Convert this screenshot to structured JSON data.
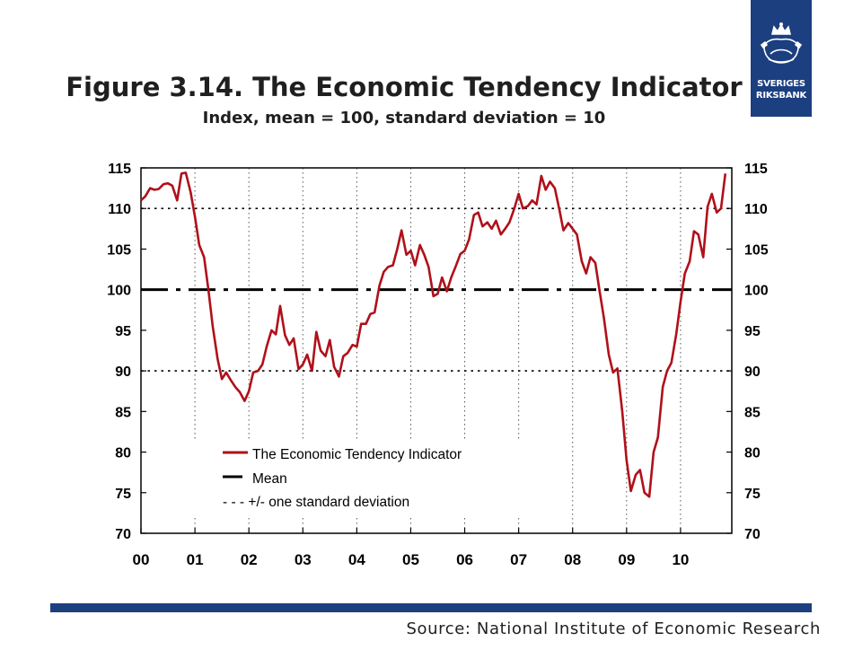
{
  "header": {
    "title": "Figure 3.14. The Economic Tendency Indicator",
    "subtitle": "Index, mean = 100, standard deviation = 10"
  },
  "logo": {
    "line1": "SVERIGES",
    "line2": "RIKSBANK"
  },
  "footer": {
    "source": "Source: National Institute of Economic Research"
  },
  "colors": {
    "series": "#b0101a",
    "brand": "#1c3f80"
  },
  "chart_data": {
    "type": "line",
    "xlabel": "",
    "ylabel": "",
    "ylim": [
      70,
      115
    ],
    "yticks": [
      70,
      75,
      80,
      85,
      90,
      95,
      100,
      105,
      110,
      115
    ],
    "xlim": [
      2000,
      2010.95
    ],
    "xticks": [
      {
        "x": 2000,
        "label": "00"
      },
      {
        "x": 2001,
        "label": "01"
      },
      {
        "x": 2002,
        "label": "02"
      },
      {
        "x": 2003,
        "label": "03"
      },
      {
        "x": 2004,
        "label": "04"
      },
      {
        "x": 2005,
        "label": "05"
      },
      {
        "x": 2006,
        "label": "06"
      },
      {
        "x": 2007,
        "label": "07"
      },
      {
        "x": 2008,
        "label": "08"
      },
      {
        "x": 2009,
        "label": "09"
      },
      {
        "x": 2010,
        "label": "10"
      }
    ],
    "legend_position": "bottom-left",
    "series": [
      {
        "name": "The Economic Tendency Indicator",
        "style": "solid",
        "points": [
          [
            2000.0,
            111.0
          ],
          [
            2000.08,
            111.5
          ],
          [
            2000.17,
            112.5
          ],
          [
            2000.25,
            112.3
          ],
          [
            2000.33,
            112.4
          ],
          [
            2000.42,
            113.0
          ],
          [
            2000.5,
            113.1
          ],
          [
            2000.58,
            112.8
          ],
          [
            2000.67,
            111.0
          ],
          [
            2000.75,
            114.3
          ],
          [
            2000.83,
            114.4
          ],
          [
            2000.92,
            112.0
          ],
          [
            2001.0,
            109.0
          ],
          [
            2001.08,
            105.5
          ],
          [
            2001.17,
            104.0
          ],
          [
            2001.25,
            100.0
          ],
          [
            2001.33,
            95.5
          ],
          [
            2001.42,
            91.5
          ],
          [
            2001.5,
            89.0
          ],
          [
            2001.58,
            89.8
          ],
          [
            2001.67,
            88.8
          ],
          [
            2001.75,
            88.0
          ],
          [
            2001.83,
            87.4
          ],
          [
            2001.92,
            86.3
          ],
          [
            2002.0,
            87.5
          ],
          [
            2002.08,
            89.8
          ],
          [
            2002.17,
            90.0
          ],
          [
            2002.25,
            90.8
          ],
          [
            2002.33,
            93.0
          ],
          [
            2002.42,
            95.0
          ],
          [
            2002.5,
            94.5
          ],
          [
            2002.58,
            98.0
          ],
          [
            2002.67,
            94.4
          ],
          [
            2002.75,
            93.2
          ],
          [
            2002.83,
            94.0
          ],
          [
            2002.92,
            90.2
          ],
          [
            2003.0,
            90.8
          ],
          [
            2003.08,
            92.0
          ],
          [
            2003.17,
            90.0
          ],
          [
            2003.25,
            94.8
          ],
          [
            2003.33,
            92.5
          ],
          [
            2003.42,
            91.8
          ],
          [
            2003.5,
            93.8
          ],
          [
            2003.58,
            90.5
          ],
          [
            2003.67,
            89.3
          ],
          [
            2003.75,
            91.8
          ],
          [
            2003.83,
            92.2
          ],
          [
            2003.92,
            93.2
          ],
          [
            2004.0,
            93.0
          ],
          [
            2004.08,
            95.8
          ],
          [
            2004.17,
            95.8
          ],
          [
            2004.25,
            97.0
          ],
          [
            2004.33,
            97.2
          ],
          [
            2004.42,
            100.5
          ],
          [
            2004.5,
            102.2
          ],
          [
            2004.58,
            102.8
          ],
          [
            2004.67,
            103.0
          ],
          [
            2004.75,
            105.0
          ],
          [
            2004.83,
            107.3
          ],
          [
            2004.92,
            104.3
          ],
          [
            2005.0,
            104.8
          ],
          [
            2005.08,
            103.0
          ],
          [
            2005.17,
            105.5
          ],
          [
            2005.25,
            104.3
          ],
          [
            2005.33,
            102.8
          ],
          [
            2005.42,
            99.2
          ],
          [
            2005.5,
            99.5
          ],
          [
            2005.58,
            101.5
          ],
          [
            2005.67,
            99.8
          ],
          [
            2005.75,
            101.5
          ],
          [
            2005.83,
            102.8
          ],
          [
            2005.92,
            104.4
          ],
          [
            2006.0,
            104.8
          ],
          [
            2006.08,
            106.2
          ],
          [
            2006.17,
            109.2
          ],
          [
            2006.25,
            109.5
          ],
          [
            2006.33,
            107.8
          ],
          [
            2006.42,
            108.3
          ],
          [
            2006.5,
            107.5
          ],
          [
            2006.58,
            108.5
          ],
          [
            2006.67,
            106.8
          ],
          [
            2006.75,
            107.5
          ],
          [
            2006.83,
            108.3
          ],
          [
            2006.92,
            110.0
          ],
          [
            2007.0,
            111.8
          ],
          [
            2007.08,
            110.0
          ],
          [
            2007.17,
            110.3
          ],
          [
            2007.25,
            111.0
          ],
          [
            2007.33,
            110.5
          ],
          [
            2007.42,
            114.0
          ],
          [
            2007.5,
            112.3
          ],
          [
            2007.58,
            113.3
          ],
          [
            2007.67,
            112.5
          ],
          [
            2007.75,
            110.0
          ],
          [
            2007.83,
            107.3
          ],
          [
            2007.92,
            108.2
          ],
          [
            2008.0,
            107.5
          ],
          [
            2008.08,
            106.8
          ],
          [
            2008.17,
            103.5
          ],
          [
            2008.25,
            102.0
          ],
          [
            2008.33,
            104.0
          ],
          [
            2008.42,
            103.3
          ],
          [
            2008.5,
            99.8
          ],
          [
            2008.58,
            96.5
          ],
          [
            2008.67,
            92.0
          ],
          [
            2008.75,
            89.8
          ],
          [
            2008.83,
            90.3
          ],
          [
            2008.92,
            85.0
          ],
          [
            2009.0,
            79.0
          ],
          [
            2009.08,
            75.2
          ],
          [
            2009.17,
            77.2
          ],
          [
            2009.25,
            77.8
          ],
          [
            2009.33,
            75.0
          ],
          [
            2009.42,
            74.5
          ],
          [
            2009.5,
            80.0
          ],
          [
            2009.58,
            81.8
          ],
          [
            2009.67,
            88.0
          ],
          [
            2009.75,
            90.0
          ],
          [
            2009.83,
            91.0
          ],
          [
            2009.92,
            94.5
          ],
          [
            2010.0,
            98.5
          ],
          [
            2010.08,
            102.0
          ],
          [
            2010.17,
            103.5
          ],
          [
            2010.25,
            107.2
          ],
          [
            2010.33,
            106.8
          ],
          [
            2010.42,
            104.0
          ],
          [
            2010.5,
            110.2
          ],
          [
            2010.58,
            111.8
          ],
          [
            2010.67,
            109.5
          ],
          [
            2010.75,
            110.0
          ],
          [
            2010.83,
            114.3
          ]
        ]
      },
      {
        "name": "Mean",
        "style": "dash",
        "value": 100
      },
      {
        "name": "+/- one standard deviation",
        "style": "dot",
        "values": [
          110,
          90
        ]
      }
    ],
    "legend": [
      {
        "label": "The Economic Tendency Indicator",
        "style": "solid"
      },
      {
        "label": "Mean",
        "style": "dash"
      },
      {
        "label": "- - - +/- one standard deviation",
        "style": "text"
      }
    ]
  }
}
